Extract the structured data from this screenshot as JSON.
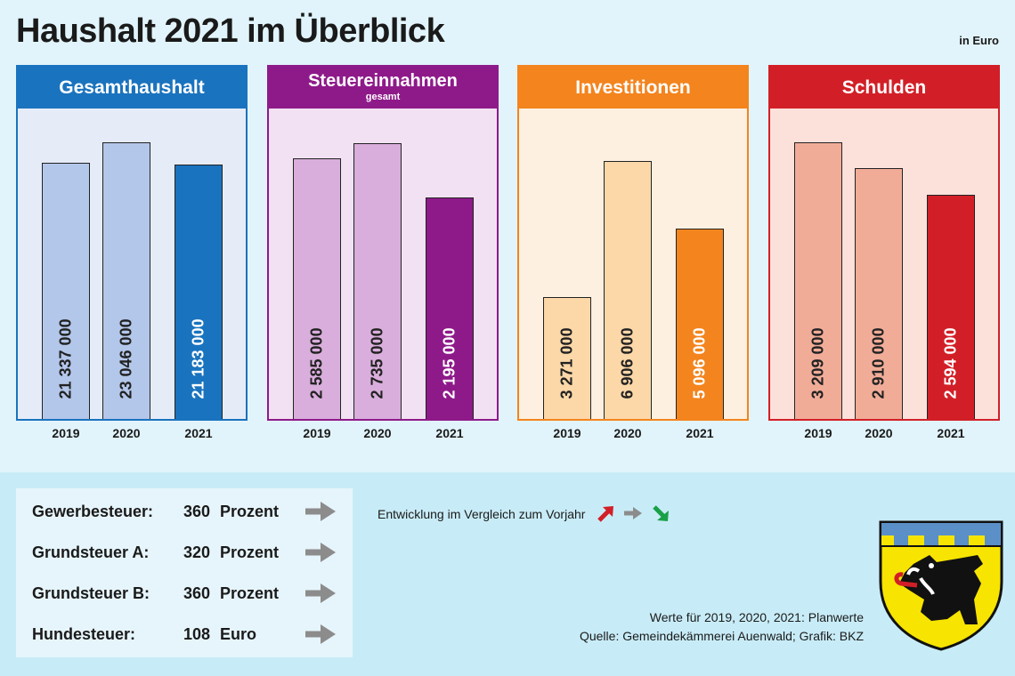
{
  "title": "Haushalt 2021 im Überblick",
  "unit_note": "in Euro",
  "colors": {
    "background": "#e2f4fb",
    "gesamt_head": "#1a73be",
    "steuer_head": "#8e1a8a",
    "invest_head": "#f3841e",
    "schulden_head": "#d21f27"
  },
  "chart_data": [
    {
      "type": "bar",
      "title": "Gesamthaushalt",
      "subtitle": "",
      "categories": [
        "2019",
        "2020",
        "2021"
      ],
      "values": [
        21337000,
        23046000,
        21183000
      ],
      "value_labels": [
        "21 337 000",
        "23 046 000",
        "21 183 000"
      ],
      "ylim": [
        0,
        26000000
      ],
      "colors": [
        "#b3c7ea",
        "#b3c7ea",
        "#1a73be"
      ],
      "panel_bg": "#e5ecf8",
      "head_color": "#1a73be",
      "border_color": "#1a73be"
    },
    {
      "type": "bar",
      "title": "Steuereinnahmen",
      "subtitle": "gesamt",
      "categories": [
        "2019",
        "2020",
        "2021"
      ],
      "values": [
        2585000,
        2735000,
        2195000
      ],
      "value_labels": [
        "2 585 000",
        "2 735 000",
        "2 195 000"
      ],
      "ylim": [
        0,
        3100000
      ],
      "colors": [
        "#d9aedc",
        "#d9aedc",
        "#8e1a8a"
      ],
      "panel_bg": "#f1e1f2",
      "head_color": "#8e1a8a",
      "border_color": "#8e1a8a"
    },
    {
      "type": "bar",
      "title": "Investitionen",
      "subtitle": "",
      "categories": [
        "2019",
        "2020",
        "2021"
      ],
      "values": [
        3271000,
        6906000,
        5096000
      ],
      "value_labels": [
        "3 271 000",
        "6 906 000",
        "5 096 000"
      ],
      "ylim": [
        0,
        8350000
      ],
      "colors": [
        "#fcd7a8",
        "#fcd7a8",
        "#f3841e"
      ],
      "panel_bg": "#fdf0e0",
      "head_color": "#f3841e",
      "border_color": "#f3841e"
    },
    {
      "type": "bar",
      "title": "Schulden",
      "subtitle": "",
      "categories": [
        "2019",
        "2020",
        "2021"
      ],
      "values": [
        3209000,
        2910000,
        2594000
      ],
      "value_labels": [
        "3 209 000",
        "2 910 000",
        "2 594 000"
      ],
      "ylim": [
        0,
        3620000
      ],
      "colors": [
        "#f1ac98",
        "#f1ac98",
        "#d21f27"
      ],
      "panel_bg": "#fce1da",
      "head_color": "#d21f27",
      "border_color": "#d21f27"
    }
  ],
  "taxes": [
    {
      "name": "Gewerbesteuer:",
      "value": "360",
      "unit": "Prozent",
      "trend": "gleich"
    },
    {
      "name": "Grundsteuer A:",
      "value": "320",
      "unit": "Prozent",
      "trend": "gleich"
    },
    {
      "name": "Grundsteuer B:",
      "value": "360",
      "unit": "Prozent",
      "trend": "gleich"
    },
    {
      "name": "Hundesteuer:",
      "value": "108",
      "unit": "Euro",
      "trend": "gleich"
    }
  ],
  "legend": {
    "text": "Entwicklung im Vergleich zum Vorjahr",
    "up_color": "#d21f27",
    "same_color": "#8c8c8c",
    "down_color": "#1aa048"
  },
  "notes": {
    "line1": "Werte für 2019, 2020, 2021: Planwerte",
    "line2": "Quelle: Gemeindekämmerei Auenwald; Grafik: BKZ"
  }
}
